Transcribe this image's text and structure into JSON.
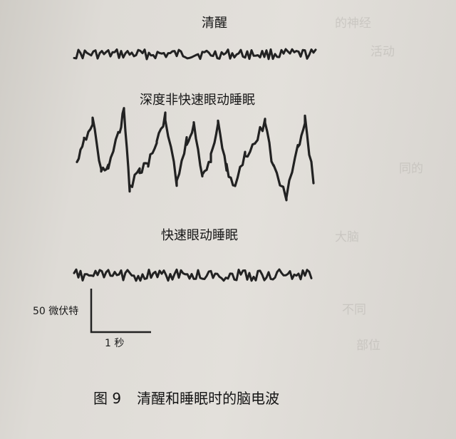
{
  "figure": {
    "labels": {
      "awake": "清醒",
      "deep_sleep": "深度非快速眼动睡眠",
      "rem_sleep": "快速眼动睡眠"
    },
    "scale_bar": {
      "vertical": "50 微伏特",
      "horizontal": "1 秒"
    },
    "caption": {
      "number": "图 9",
      "text": "清醒和睡眠时的脑电波"
    }
  }
}
